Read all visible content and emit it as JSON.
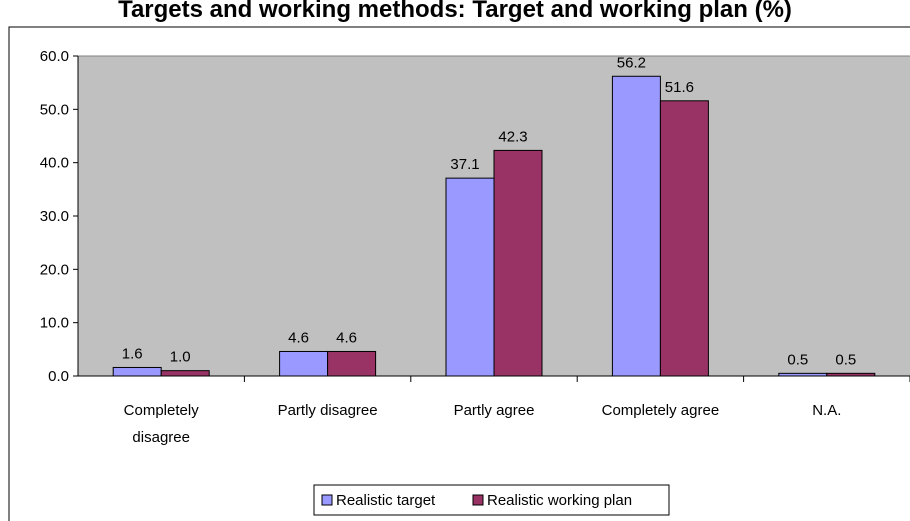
{
  "chart_data": {
    "type": "bar",
    "title": "Targets and working methods: Target and working plan (%)",
    "categories": [
      [
        "Completely",
        "disagree"
      ],
      [
        "Partly disagree"
      ],
      [
        "Partly agree"
      ],
      [
        "Completely agree"
      ],
      [
        "N.A."
      ]
    ],
    "series": [
      {
        "name": "Realistic target",
        "values": [
          1.6,
          4.6,
          37.1,
          56.2,
          0.5
        ],
        "color": "#9999ff"
      },
      {
        "name": "Realistic working plan",
        "values": [
          1.0,
          4.6,
          42.3,
          51.6,
          0.5
        ],
        "color": "#993366"
      }
    ],
    "yticks": [
      "0.0",
      "10.0",
      "20.0",
      "30.0",
      "40.0",
      "50.0",
      "60.0"
    ],
    "ylim": [
      0,
      60
    ],
    "xlabel": "",
    "ylabel": "",
    "grid": false,
    "plot_background": "#c0c0c0",
    "legend_position": "bottom"
  }
}
